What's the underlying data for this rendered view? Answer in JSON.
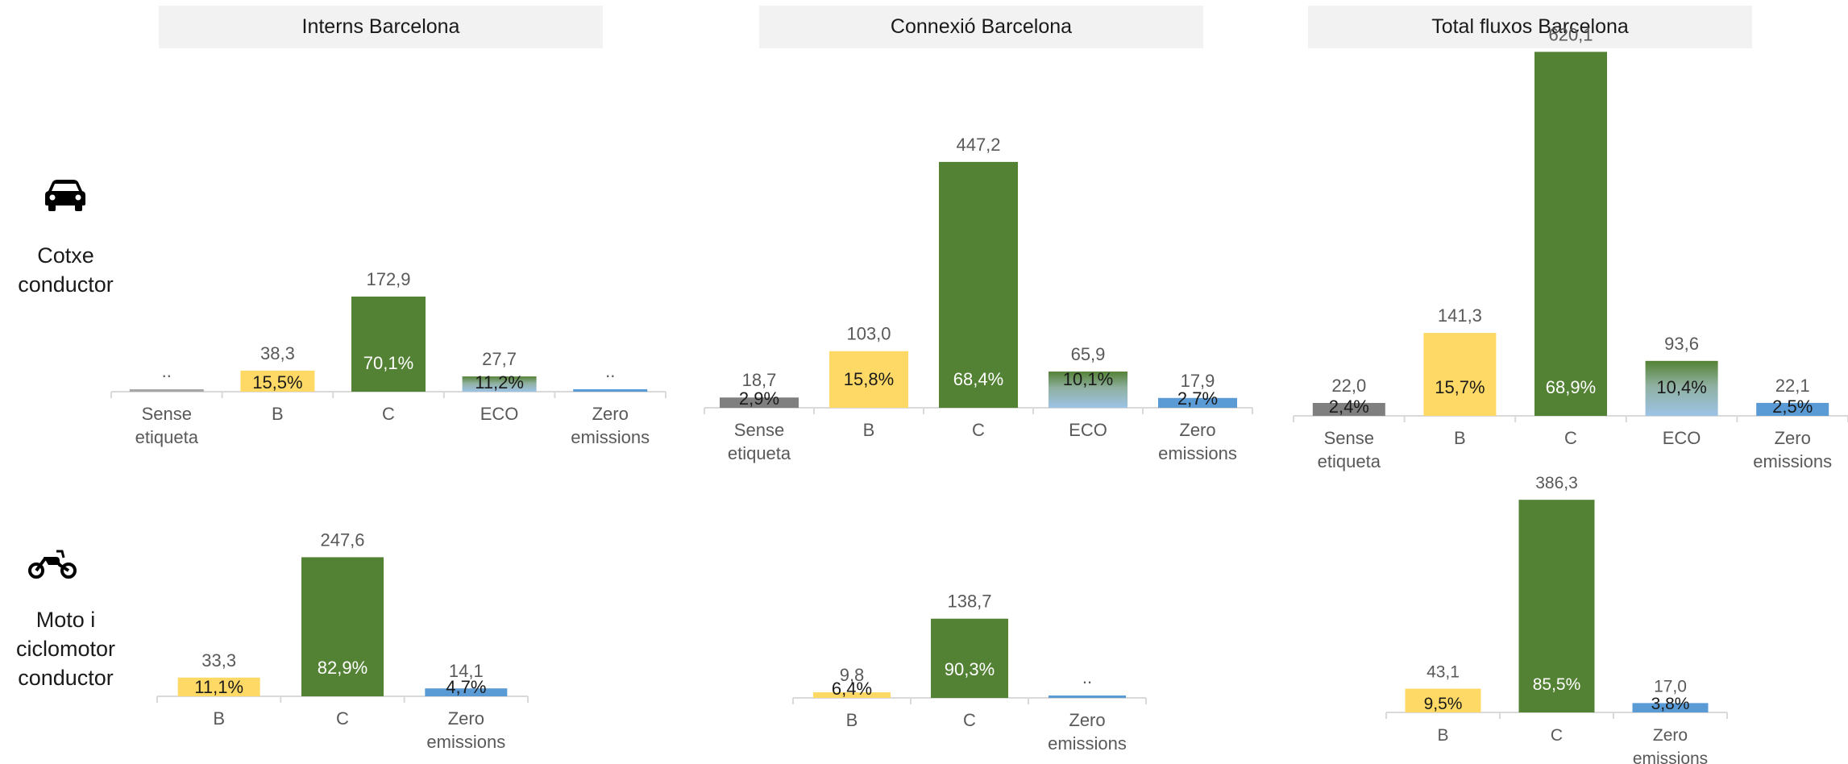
{
  "headers": {
    "interns": "Interns Barcelona",
    "connexio": "Connexió Barcelona",
    "total": "Total fluxos Barcelona"
  },
  "rows": {
    "car": {
      "icon": "car-icon",
      "label_line1": "Cotxe",
      "label_line2": "conductor"
    },
    "moto": {
      "icon": "motorcycle-icon",
      "label_line1": "Moto i",
      "label_line2": "ciclomotor",
      "label_line3": "conductor"
    }
  },
  "colors": {
    "sense_etiqueta": "#7f7f7f",
    "B": "#ffd966",
    "C": "#548235",
    "ECO_top": "#548235",
    "ECO_bottom": "#9dc3e6",
    "zero": "#5b9bd5",
    "axis": "#d9d9d9"
  },
  "chart_data": [
    {
      "type": "bar",
      "panel": "interns-car",
      "categories": [
        "Sense\netiqueta",
        "B",
        "C",
        "ECO",
        "Zero\nemissions"
      ],
      "values": [
        null,
        38.3,
        172.9,
        27.7,
        null
      ],
      "value_labels": [
        "..",
        "38,3",
        "172,9",
        "27,7",
        ".."
      ],
      "pct_labels": [
        "",
        "15,5%",
        "70,1%",
        "11,2%",
        ""
      ]
    },
    {
      "type": "bar",
      "panel": "connexio-car",
      "categories": [
        "Sense\netiqueta",
        "B",
        "C",
        "ECO",
        "Zero\nemissions"
      ],
      "values": [
        18.7,
        103.0,
        447.2,
        65.9,
        17.9
      ],
      "value_labels": [
        "18,7",
        "103,0",
        "447,2",
        "65,9",
        "17,9"
      ],
      "pct_labels": [
        "2,9%",
        "15,8%",
        "68,4%",
        "10,1%",
        "2,7%"
      ]
    },
    {
      "type": "bar",
      "panel": "total-car",
      "categories": [
        "Sense\netiqueta",
        "B",
        "C",
        "ECO",
        "Zero\nemissions"
      ],
      "values": [
        22.0,
        141.3,
        620.1,
        93.6,
        22.1
      ],
      "value_labels": [
        "22,0",
        "141,3",
        "620,1",
        "93,6",
        "22,1"
      ],
      "pct_labels": [
        "2,4%",
        "15,7%",
        "68,9%",
        "10,4%",
        "2,5%"
      ]
    },
    {
      "type": "bar",
      "panel": "interns-moto",
      "categories": [
        "B",
        "C",
        "Zero\nemissions"
      ],
      "values": [
        33.3,
        247.6,
        14.1
      ],
      "value_labels": [
        "33,3",
        "247,6",
        "14,1"
      ],
      "pct_labels": [
        "11,1%",
        "82,9%",
        "4,7%"
      ]
    },
    {
      "type": "bar",
      "panel": "connexio-moto",
      "categories": [
        "B",
        "C",
        "Zero\nemissions"
      ],
      "values": [
        9.8,
        138.7,
        null
      ],
      "value_labels": [
        "9,8",
        "138,7",
        ".."
      ],
      "pct_labels": [
        "6,4%",
        "90,3%",
        ""
      ]
    },
    {
      "type": "bar",
      "panel": "total-moto",
      "categories": [
        "B",
        "C",
        "Zero\nemissions"
      ],
      "values": [
        43.1,
        386.3,
        17.0
      ],
      "value_labels": [
        "43,1",
        "386,3",
        "17,0"
      ],
      "pct_labels": [
        "9,5%",
        "85,5%",
        "3,8%"
      ]
    }
  ]
}
